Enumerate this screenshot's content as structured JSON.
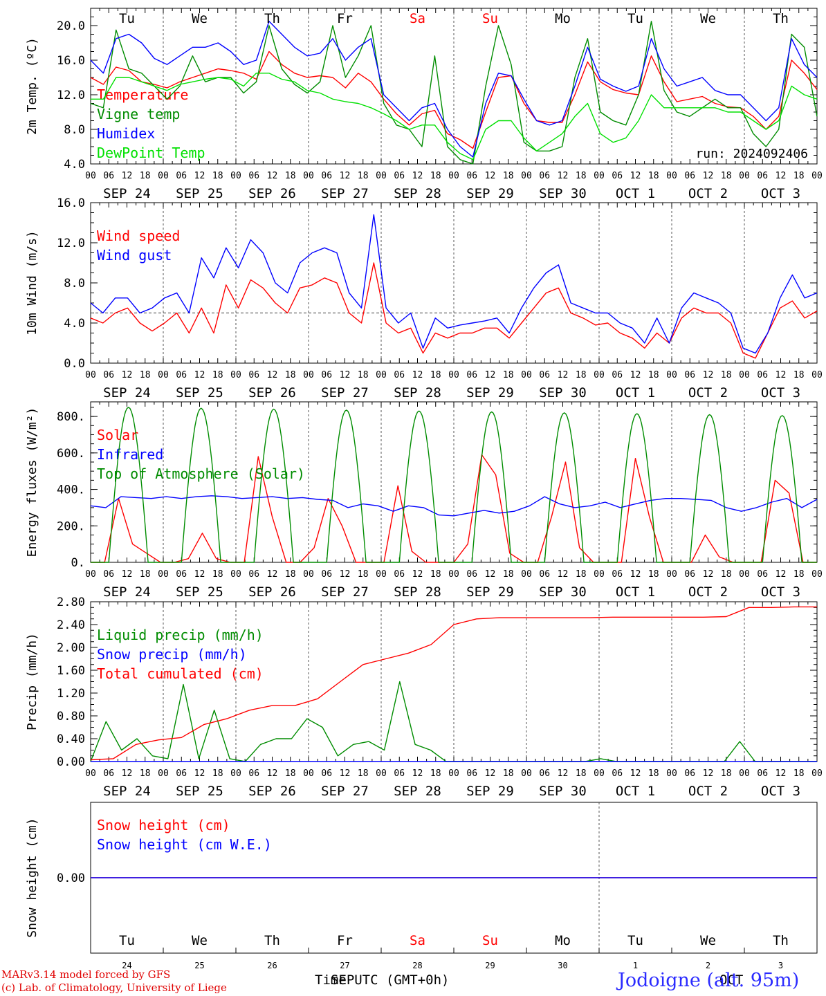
{
  "run_label": "run: 2024092406",
  "footer": {
    "credit_line1": "MARv3.14 model forced by GFS",
    "credit_line2": "(c) Lab. of Climatology, University of Liege",
    "time_axis_label": "Time UTC (GMT+0h)",
    "month_label": "SEP",
    "month_label_2": "OCT",
    "station": "Jodoigne (alt. 95m)"
  },
  "colors": {
    "red": "#ff0000",
    "green": "#008c00",
    "blue": "#0000ff",
    "lightgreen": "#00e000",
    "purple": "#7f007f",
    "grid": "#555555"
  },
  "days": {
    "weekdays": [
      "Tu",
      "We",
      "Th",
      "Fr",
      "Sa",
      "Su",
      "Mo",
      "Tu",
      "We",
      "Th"
    ],
    "weekend_flags": [
      false,
      false,
      false,
      false,
      true,
      true,
      false,
      false,
      false,
      false
    ],
    "dates": [
      "SEP 24",
      "SEP 25",
      "SEP 26",
      "SEP 27",
      "SEP 28",
      "SEP 29",
      "SEP 30",
      "OCT  1",
      "OCT  2",
      "OCT  3"
    ],
    "day_numbers": [
      "24",
      "25",
      "26",
      "27",
      "28",
      "29",
      "30",
      "1",
      "2",
      "3"
    ],
    "hour_ticks": [
      "00",
      "06",
      "12",
      "18"
    ],
    "final_hour_tick": "00"
  },
  "chart_data": [
    {
      "type": "line",
      "ylabel": "2m Temp. (ºC)",
      "ylim": [
        4,
        22
      ],
      "yticks": [
        "4.0",
        "8.0",
        "12.0",
        "16.0",
        "20.0"
      ],
      "ytick_values": [
        4,
        8,
        12,
        16,
        20
      ],
      "x_unit": "hours since SEP 24 00 UTC, 6-hourly",
      "grid": "vertical dotted at day boundaries",
      "legend_position": "top-left",
      "series": [
        {
          "name": "Temperature",
          "color": "#ff0000",
          "values": [
            14,
            13.2,
            15.2,
            14.8,
            13.5,
            13.2,
            12.8,
            13.5,
            14,
            14.5,
            15,
            14.8,
            14.5,
            13.8,
            17,
            15.5,
            14.5,
            14,
            14.2,
            14,
            12.8,
            14.5,
            13.5,
            11.5,
            9.8,
            8.5,
            9.8,
            10.2,
            7.5,
            6.8,
            5.8,
            10,
            14,
            14.2,
            11,
            9,
            8.8,
            8.8,
            12,
            15.8,
            13.5,
            12.6,
            12.2,
            12,
            16.5,
            13.5,
            11.2,
            11.5,
            11.8,
            11,
            10.6,
            10.5,
            9.5,
            8,
            9.5,
            16,
            14.5,
            12.6
          ]
        },
        {
          "name": "Vigne temp",
          "color": "#008c00",
          "values": [
            11,
            10.5,
            19.5,
            15,
            14.5,
            13,
            11.5,
            13,
            16.5,
            13.5,
            14,
            14,
            12.2,
            13.5,
            20,
            15,
            13.2,
            12.2,
            13.5,
            20,
            14,
            16.5,
            20,
            11,
            8.5,
            8,
            6,
            16.5,
            6,
            4.5,
            4,
            13,
            20,
            15.5,
            6.5,
            5.5,
            5.5,
            6,
            14,
            18.5,
            10,
            9,
            8.5,
            12,
            20.5,
            12.5,
            10,
            9.5,
            10.5,
            11.5,
            10.5,
            10.5,
            7.5,
            6,
            8,
            19,
            17.5,
            9.5
          ]
        },
        {
          "name": "Humidex",
          "color": "#0000ff",
          "values": [
            16,
            14.5,
            18.5,
            19,
            18,
            16.2,
            15.5,
            16.5,
            17.5,
            17.5,
            18,
            17,
            15.5,
            16,
            20.5,
            19,
            17.5,
            16.5,
            16.8,
            18.5,
            16,
            17.5,
            18.5,
            12,
            10.5,
            9,
            10.5,
            11,
            8,
            6,
            4.8,
            11,
            14.5,
            14.2,
            11.5,
            9,
            8.5,
            9,
            13,
            17.5,
            13.8,
            13,
            12.4,
            13,
            18.5,
            15,
            13,
            13.5,
            14,
            12.5,
            12,
            12,
            10.5,
            9,
            10.5,
            18.5,
            15.5,
            14
          ]
        },
        {
          "name": "DewPoint Temp",
          "color": "#00e000",
          "values": [
            11.5,
            11.5,
            14,
            14,
            13.5,
            13,
            12.5,
            13.2,
            13.5,
            13.8,
            14,
            13.8,
            13,
            14.5,
            14.5,
            13.8,
            13.5,
            12.5,
            12.2,
            11.5,
            11.2,
            11,
            10.5,
            9.8,
            9,
            8,
            8.5,
            8.5,
            6.5,
            5.2,
            4.5,
            8,
            9,
            9,
            7,
            5.5,
            6.5,
            7.5,
            9.5,
            11,
            7.5,
            6.5,
            7,
            9,
            12,
            10.5,
            10.5,
            10.5,
            10.5,
            10.5,
            10,
            10,
            9,
            8,
            9,
            13,
            12,
            11.5
          ]
        }
      ]
    },
    {
      "type": "line",
      "ylabel": "10m Wind (m/s)",
      "ylim": [
        0,
        16
      ],
      "yticks": [
        "0.0",
        "4.0",
        "8.0",
        "12.0",
        "16.0"
      ],
      "ytick_values": [
        0,
        4,
        8,
        12,
        16
      ],
      "reference_line": 5,
      "legend_position": "top-left",
      "series": [
        {
          "name": "Wind speed",
          "color": "#ff0000",
          "values": [
            4.5,
            4,
            5,
            5.5,
            4,
            3.2,
            4,
            5,
            3,
            5.5,
            3,
            7.8,
            5.5,
            8.3,
            7.5,
            6,
            5,
            7.5,
            7.8,
            8.5,
            8,
            5,
            4,
            10,
            4,
            3,
            3.5,
            1,
            3,
            2.5,
            3,
            3,
            3.5,
            3.5,
            2.5,
            4,
            5.5,
            7,
            7.5,
            5,
            4.5,
            3.8,
            4,
            3,
            2.5,
            1.5,
            3,
            2,
            4.5,
            5.5,
            5,
            5,
            4,
            1,
            0.5,
            3,
            5.5,
            6.2,
            4.5,
            5.2
          ]
        },
        {
          "name": "Wind gust",
          "color": "#0000ff",
          "values": [
            6,
            5,
            6.5,
            6.5,
            5,
            5.5,
            6.5,
            7,
            5,
            10.5,
            8.5,
            11.5,
            9.5,
            12.3,
            11,
            8,
            7,
            10,
            11,
            11.5,
            11,
            7,
            5.5,
            14.8,
            5.5,
            4,
            5,
            1.5,
            4.5,
            3.5,
            3.8,
            4,
            4.2,
            4.5,
            3,
            5.5,
            7.5,
            9,
            9.8,
            6,
            5.5,
            5,
            5,
            4,
            3.5,
            2,
            4.5,
            2,
            5.5,
            7,
            6.5,
            6,
            5,
            1.5,
            1,
            3,
            6.5,
            8.8,
            6.5,
            7
          ]
        }
      ]
    },
    {
      "type": "line",
      "ylabel": "Energy fluxes (W/m²)",
      "ylim": [
        0,
        880
      ],
      "yticks": [
        "0.",
        "200.",
        "400.",
        "600.",
        "800."
      ],
      "ytick_values": [
        0,
        200,
        400,
        600,
        800
      ],
      "legend_position": "top-left",
      "series": [
        {
          "name": "Solar",
          "color": "#ff0000",
          "values": [
            0,
            0,
            350,
            100,
            50,
            0,
            0,
            20,
            160,
            20,
            0,
            0,
            580,
            250,
            0,
            0,
            80,
            350,
            200,
            0,
            0,
            0,
            420,
            60,
            0,
            0,
            0,
            100,
            590,
            480,
            50,
            0,
            0,
            250,
            550,
            80,
            0,
            0,
            0,
            570,
            250,
            0,
            0,
            0,
            150,
            30,
            0,
            0,
            0,
            450,
            380,
            0,
            0
          ]
        },
        {
          "name": "Infrared",
          "color": "#0000ff",
          "values": [
            310,
            300,
            360,
            355,
            350,
            360,
            350,
            360,
            365,
            360,
            350,
            355,
            360,
            350,
            355,
            345,
            340,
            300,
            320,
            310,
            280,
            310,
            300,
            260,
            255,
            270,
            285,
            270,
            280,
            310,
            360,
            320,
            300,
            310,
            330,
            300,
            320,
            340,
            350,
            350,
            345,
            340,
            300,
            280,
            300,
            330,
            350,
            300,
            345
          ]
        },
        {
          "name": "Top of Atmosphere (Solar)",
          "color": "#008c00",
          "values": [
            850,
            845,
            840,
            835,
            830,
            825,
            820,
            815,
            810,
            805
          ]
        }
      ]
    },
    {
      "type": "line",
      "ylabel": "Precip (mm/h)",
      "ylim": [
        0,
        2.8
      ],
      "yticks": [
        "0.00",
        "0.40",
        "0.80",
        "1.20",
        "1.60",
        "2.00",
        "2.40",
        "2.80"
      ],
      "ytick_values": [
        0,
        0.4,
        0.8,
        1.2,
        1.6,
        2,
        2.4,
        2.8
      ],
      "legend_position": "top-left",
      "series": [
        {
          "name": "Liquid precip (mm/h)",
          "color": "#008c00",
          "values": [
            0,
            0.7,
            0.2,
            0.4,
            0.1,
            0.05,
            1.35,
            0.05,
            0.9,
            0.05,
            0,
            0.3,
            0.4,
            0.4,
            0.75,
            0.6,
            0.1,
            0.3,
            0.35,
            0.2,
            1.4,
            0.3,
            0.2,
            0,
            0,
            0,
            0,
            0,
            0,
            0,
            0,
            0,
            0,
            0.05,
            0,
            0,
            0,
            0,
            0,
            0,
            0,
            0,
            0.35,
            0,
            0,
            0,
            0,
            0
          ]
        },
        {
          "name": "Snow precip (mm/h)",
          "color": "#0000ff",
          "values": [
            0,
            0,
            0,
            0,
            0,
            0,
            0,
            0,
            0,
            0,
            0,
            0,
            0,
            0,
            0,
            0,
            0,
            0,
            0,
            0,
            0,
            0,
            0,
            0,
            0,
            0,
            0,
            0,
            0,
            0,
            0,
            0,
            0,
            0,
            0,
            0,
            0,
            0,
            0,
            0,
            0,
            0,
            0,
            0,
            0,
            0,
            0,
            0
          ]
        },
        {
          "name": "Total cumulated (cm)",
          "color": "#ff0000",
          "values": [
            0.03,
            0.05,
            0.3,
            0.38,
            0.42,
            0.65,
            0.75,
            0.9,
            0.98,
            0.98,
            1.1,
            1.4,
            1.7,
            1.8,
            1.9,
            2.05,
            2.4,
            2.5,
            2.52,
            2.52,
            2.52,
            2.52,
            2.52,
            2.53,
            2.53,
            2.53,
            2.53,
            2.53,
            2.54,
            2.7,
            2.7,
            2.71,
            2.71
          ]
        }
      ]
    },
    {
      "type": "line",
      "ylabel": "Snow height (cm)",
      "ylim": [
        -1,
        1
      ],
      "yticks": [
        "0.00"
      ],
      "ytick_values": [
        0
      ],
      "legend_position": "top-left",
      "series": [
        {
          "name": "Snow height (cm)",
          "color": "#ff0000",
          "values": [
            0,
            0
          ]
        },
        {
          "name": "Snow height (cm W.E.)",
          "color": "#0000ff",
          "values": [
            0,
            0
          ]
        }
      ]
    }
  ]
}
